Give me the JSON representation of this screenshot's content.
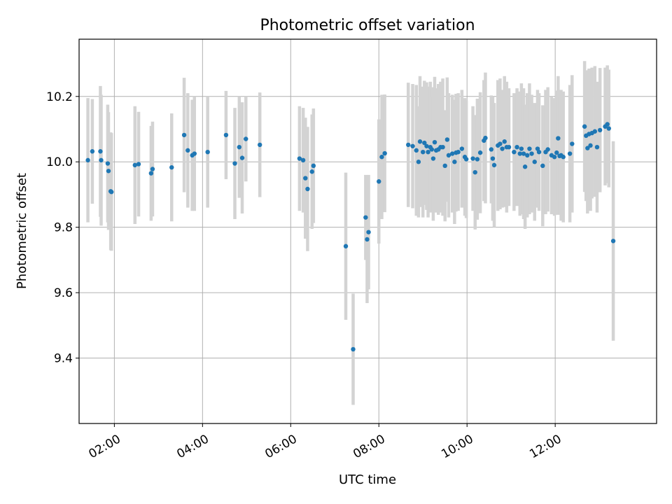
{
  "chart_data": {
    "type": "scatter",
    "title": "Photometric offset variation",
    "xlabel": "UTC time",
    "ylabel": "Photometric offset",
    "xlim": [
      "01:12",
      "14:18"
    ],
    "ylim": [
      9.2,
      10.375
    ],
    "xticks": [
      "02:00",
      "04:00",
      "06:00",
      "08:00",
      "10:00",
      "12:00"
    ],
    "yticks": [
      9.4,
      9.6,
      9.8,
      10.0,
      10.2
    ],
    "grid": true,
    "marker_color": "#1f77b4",
    "errorbar_color": "#d3d3d3",
    "points": [
      {
        "x": "01:24",
        "y": 10.005,
        "err": 0.19
      },
      {
        "x": "01:30",
        "y": 10.032,
        "err": 0.16
      },
      {
        "x": "01:41",
        "y": 10.032,
        "err": 0.2
      },
      {
        "x": "01:42",
        "y": 10.005,
        "err": 0.2
      },
      {
        "x": "01:51",
        "y": 9.995,
        "err": 0.18
      },
      {
        "x": "01:52",
        "y": 9.972,
        "err": 0.18
      },
      {
        "x": "01:55",
        "y": 9.91,
        "err": 0.18
      },
      {
        "x": "01:56",
        "y": 9.908,
        "err": 0.18
      },
      {
        "x": "02:28",
        "y": 9.99,
        "err": 0.18
      },
      {
        "x": "02:33",
        "y": 9.993,
        "err": 0.16
      },
      {
        "x": "02:50",
        "y": 9.965,
        "err": 0.145
      },
      {
        "x": "02:52",
        "y": 9.978,
        "err": 0.145
      },
      {
        "x": "03:18",
        "y": 9.983,
        "err": 0.165
      },
      {
        "x": "03:35",
        "y": 10.082,
        "err": 0.175
      },
      {
        "x": "03:40",
        "y": 10.035,
        "err": 0.175
      },
      {
        "x": "03:46",
        "y": 10.02,
        "err": 0.17
      },
      {
        "x": "03:49",
        "y": 10.025,
        "err": 0.175
      },
      {
        "x": "04:07",
        "y": 10.03,
        "err": 0.17
      },
      {
        "x": "04:32",
        "y": 10.082,
        "err": 0.135
      },
      {
        "x": "04:44",
        "y": 9.995,
        "err": 0.17
      },
      {
        "x": "04:50",
        "y": 10.045,
        "err": 0.155
      },
      {
        "x": "04:54",
        "y": 10.012,
        "err": 0.17
      },
      {
        "x": "04:59",
        "y": 10.07,
        "err": 0.13
      },
      {
        "x": "05:18",
        "y": 10.052,
        "err": 0.16
      },
      {
        "x": "06:12",
        "y": 10.01,
        "err": 0.16
      },
      {
        "x": "06:17",
        "y": 10.005,
        "err": 0.16
      },
      {
        "x": "06:20",
        "y": 9.95,
        "err": 0.185
      },
      {
        "x": "06:23",
        "y": 9.917,
        "err": 0.19
      },
      {
        "x": "06:29",
        "y": 9.97,
        "err": 0.175
      },
      {
        "x": "06:31",
        "y": 9.988,
        "err": 0.175
      },
      {
        "x": "07:15",
        "y": 9.742,
        "err": 0.225
      },
      {
        "x": "07:25",
        "y": 9.427,
        "err": 0.17
      },
      {
        "x": "07:42",
        "y": 9.83,
        "err": 0.13
      },
      {
        "x": "07:44",
        "y": 9.763,
        "err": 0.195
      },
      {
        "x": "07:46",
        "y": 9.785,
        "err": 0.175
      },
      {
        "x": "08:00",
        "y": 9.94,
        "err": 0.19
      },
      {
        "x": "08:04",
        "y": 10.015,
        "err": 0.19
      },
      {
        "x": "08:08",
        "y": 10.026,
        "err": 0.18
      },
      {
        "x": "08:40",
        "y": 10.052,
        "err": 0.19
      },
      {
        "x": "08:46",
        "y": 10.048,
        "err": 0.19
      },
      {
        "x": "08:51",
        "y": 10.035,
        "err": 0.2
      },
      {
        "x": "08:54",
        "y": 10.0,
        "err": 0.17
      },
      {
        "x": "08:56",
        "y": 10.062,
        "err": 0.2
      },
      {
        "x": "09:00",
        "y": 10.03,
        "err": 0.2
      },
      {
        "x": "09:02",
        "y": 10.058,
        "err": 0.19
      },
      {
        "x": "09:05",
        "y": 10.048,
        "err": 0.195
      },
      {
        "x": "09:07",
        "y": 10.03,
        "err": 0.2
      },
      {
        "x": "09:10",
        "y": 10.045,
        "err": 0.2
      },
      {
        "x": "09:12",
        "y": 10.038,
        "err": 0.19
      },
      {
        "x": "09:14",
        "y": 10.01,
        "err": 0.19
      },
      {
        "x": "09:16",
        "y": 10.06,
        "err": 0.2
      },
      {
        "x": "09:18",
        "y": 10.035,
        "err": 0.19
      },
      {
        "x": "09:21",
        "y": 10.038,
        "err": 0.2
      },
      {
        "x": "09:24",
        "y": 10.045,
        "err": 0.2
      },
      {
        "x": "09:27",
        "y": 10.045,
        "err": 0.21
      },
      {
        "x": "09:30",
        "y": 9.988,
        "err": 0.17
      },
      {
        "x": "09:33",
        "y": 10.068,
        "err": 0.19
      },
      {
        "x": "09:35",
        "y": 10.02,
        "err": 0.19
      },
      {
        "x": "09:40",
        "y": 10.025,
        "err": 0.18
      },
      {
        "x": "09:43",
        "y": 10.0,
        "err": 0.19
      },
      {
        "x": "09:45",
        "y": 10.028,
        "err": 0.18
      },
      {
        "x": "09:48",
        "y": 10.03,
        "err": 0.18
      },
      {
        "x": "09:53",
        "y": 10.04,
        "err": 0.18
      },
      {
        "x": "09:57",
        "y": 10.015,
        "err": 0.18
      },
      {
        "x": "09:59",
        "y": 10.008,
        "err": 0.18
      },
      {
        "x": "10:08",
        "y": 10.01,
        "err": 0.16
      },
      {
        "x": "10:11",
        "y": 9.968,
        "err": 0.175
      },
      {
        "x": "10:14",
        "y": 10.008,
        "err": 0.185
      },
      {
        "x": "10:18",
        "y": 10.028,
        "err": 0.185
      },
      {
        "x": "10:23",
        "y": 10.065,
        "err": 0.185
      },
      {
        "x": "10:25",
        "y": 10.073,
        "err": 0.2
      },
      {
        "x": "10:33",
        "y": 10.038,
        "err": 0.165
      },
      {
        "x": "10:35",
        "y": 10.01,
        "err": 0.19
      },
      {
        "x": "10:37",
        "y": 9.99,
        "err": 0.19
      },
      {
        "x": "10:42",
        "y": 10.05,
        "err": 0.2
      },
      {
        "x": "10:45",
        "y": 10.055,
        "err": 0.2
      },
      {
        "x": "10:48",
        "y": 10.04,
        "err": 0.18
      },
      {
        "x": "10:51",
        "y": 10.062,
        "err": 0.2
      },
      {
        "x": "10:54",
        "y": 10.045,
        "err": 0.2
      },
      {
        "x": "10:57",
        "y": 10.045,
        "err": 0.18
      },
      {
        "x": "11:04",
        "y": 10.03,
        "err": 0.18
      },
      {
        "x": "11:08",
        "y": 10.045,
        "err": 0.18
      },
      {
        "x": "11:12",
        "y": 10.025,
        "err": 0.19
      },
      {
        "x": "11:14",
        "y": 10.04,
        "err": 0.2
      },
      {
        "x": "11:17",
        "y": 10.025,
        "err": 0.2
      },
      {
        "x": "11:19",
        "y": 9.985,
        "err": 0.19
      },
      {
        "x": "11:22",
        "y": 10.02,
        "err": 0.19
      },
      {
        "x": "11:25",
        "y": 10.04,
        "err": 0.2
      },
      {
        "x": "11:28",
        "y": 10.025,
        "err": 0.18
      },
      {
        "x": "11:32",
        "y": 10.0,
        "err": 0.18
      },
      {
        "x": "11:36",
        "y": 10.04,
        "err": 0.18
      },
      {
        "x": "11:38",
        "y": 10.03,
        "err": 0.18
      },
      {
        "x": "11:43",
        "y": 9.988,
        "err": 0.185
      },
      {
        "x": "11:47",
        "y": 10.03,
        "err": 0.19
      },
      {
        "x": "11:50",
        "y": 10.038,
        "err": 0.19
      },
      {
        "x": "11:55",
        "y": 10.02,
        "err": 0.18
      },
      {
        "x": "11:59",
        "y": 10.015,
        "err": 0.18
      },
      {
        "x": "12:02",
        "y": 10.028,
        "err": 0.19
      },
      {
        "x": "12:04",
        "y": 10.072,
        "err": 0.19
      },
      {
        "x": "12:06",
        "y": 10.018,
        "err": 0.18
      },
      {
        "x": "12:08",
        "y": 10.02,
        "err": 0.2
      },
      {
        "x": "12:11",
        "y": 10.015,
        "err": 0.2
      },
      {
        "x": "12:20",
        "y": 10.025,
        "err": 0.21
      },
      {
        "x": "12:23",
        "y": 10.055,
        "err": 0.21
      },
      {
        "x": "12:40",
        "y": 10.108,
        "err": 0.2
      },
      {
        "x": "12:42",
        "y": 10.08,
        "err": 0.2
      },
      {
        "x": "12:44",
        "y": 10.042,
        "err": 0.2
      },
      {
        "x": "12:46",
        "y": 10.085,
        "err": 0.2
      },
      {
        "x": "12:48",
        "y": 10.05,
        "err": 0.2
      },
      {
        "x": "12:50",
        "y": 10.088,
        "err": 0.2
      },
      {
        "x": "12:54",
        "y": 10.093,
        "err": 0.2
      },
      {
        "x": "12:57",
        "y": 10.045,
        "err": 0.2
      },
      {
        "x": "13:01",
        "y": 10.097,
        "err": 0.19
      },
      {
        "x": "13:08",
        "y": 10.108,
        "err": 0.18
      },
      {
        "x": "13:11",
        "y": 10.115,
        "err": 0.18
      },
      {
        "x": "13:13",
        "y": 10.102,
        "err": 0.18
      },
      {
        "x": "13:19",
        "y": 9.758,
        "err": 0.305
      }
    ]
  }
}
